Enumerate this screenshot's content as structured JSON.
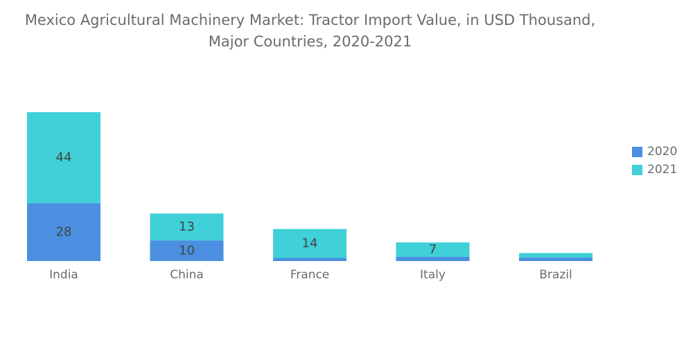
{
  "title": {
    "line1": "Mexico Agricultural Machinery Market: Tractor Import Value, in USD Thousand,",
    "line2": "Major Countries, 2020-2021"
  },
  "colors": {
    "series_2020": "#4a8fe0",
    "series_2021": "#3fd0d8",
    "text": "#6b6b6b",
    "label": "#444444"
  },
  "chart_data": {
    "type": "bar",
    "stacked": true,
    "categories": [
      "India",
      "China",
      "France",
      "Italy",
      "Brazil"
    ],
    "series": [
      {
        "name": "2020",
        "values": [
          28,
          10,
          1.5,
          2,
          1.7
        ],
        "labels": [
          "28",
          "10",
          "",
          "",
          ""
        ]
      },
      {
        "name": "2021",
        "values": [
          44,
          13,
          14,
          7,
          2.2
        ],
        "labels": [
          "44",
          "13",
          "14",
          "7",
          ""
        ]
      }
    ],
    "ylim": [
      0,
      72
    ],
    "grid": false,
    "legend_position": "right"
  }
}
